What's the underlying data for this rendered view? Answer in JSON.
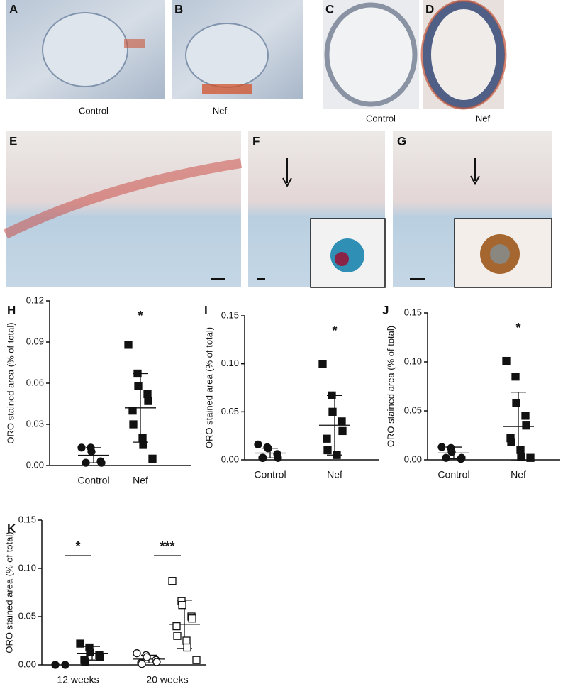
{
  "images": [
    {
      "label": "A",
      "caption": "Control"
    },
    {
      "label": "B",
      "caption": "Nef"
    },
    {
      "label": "C",
      "caption": "Control"
    },
    {
      "label": "D",
      "caption": "Nef"
    },
    {
      "label": "E"
    },
    {
      "label": "F"
    },
    {
      "label": "G"
    }
  ],
  "chart_data": [
    {
      "type": "scatter",
      "panel": "H",
      "ylabel": "ORO stained area (% of total)",
      "categories": [
        "Control",
        "Nef"
      ],
      "annotations": [
        "*"
      ],
      "ylim": [
        0,
        0.12
      ],
      "yticks": [
        {
          "value": 0,
          "label": "0.00"
        },
        {
          "value": 0.03,
          "label": "0.03"
        },
        {
          "value": 0.06,
          "label": "0.06"
        },
        {
          "value": 0.09,
          "label": "0.09"
        },
        {
          "value": 0.12,
          "label": "0.12"
        }
      ],
      "series": [
        {
          "marker": "circle",
          "filled": true,
          "color": "#111111",
          "values": [
            0.013,
            0.013,
            0.01,
            0.003,
            0.002,
            0.002
          ],
          "mean": 0.0075,
          "sd": 0.0055
        },
        {
          "marker": "square",
          "filled": true,
          "color": "#111111",
          "values": [
            0.088,
            0.067,
            0.058,
            0.052,
            0.047,
            0.04,
            0.03,
            0.02,
            0.015,
            0.005
          ],
          "mean": 0.042,
          "sd": 0.025
        }
      ]
    },
    {
      "type": "scatter",
      "panel": "I",
      "ylabel": "ORO stained area (% of total)",
      "categories": [
        "Control",
        "Nef"
      ],
      "annotations": [
        "*"
      ],
      "ylim": [
        0,
        0.15
      ],
      "yticks": [
        {
          "value": 0,
          "label": "0.00"
        },
        {
          "value": 0.05,
          "label": "0.05"
        },
        {
          "value": 0.1,
          "label": "0.10"
        },
        {
          "value": 0.15,
          "label": "0.15"
        }
      ],
      "series": [
        {
          "marker": "circle",
          "filled": true,
          "color": "#111111",
          "values": [
            0.016,
            0.013,
            0.012,
            0.006,
            0.002,
            0.002,
            0.002
          ],
          "mean": 0.007,
          "sd": 0.005
        },
        {
          "marker": "square",
          "filled": true,
          "color": "#111111",
          "values": [
            0.1,
            0.067,
            0.05,
            0.04,
            0.03,
            0.022,
            0.01,
            0.005
          ],
          "mean": 0.036,
          "sd": 0.031
        }
      ]
    },
    {
      "type": "scatter",
      "panel": "J",
      "ylabel": "ORO stained area (% of total)",
      "categories": [
        "Control",
        "Nef"
      ],
      "annotations": [
        "*"
      ],
      "ylim": [
        0,
        0.15
      ],
      "yticks": [
        {
          "value": 0,
          "label": "0.00"
        },
        {
          "value": 0.05,
          "label": "0.05"
        },
        {
          "value": 0.1,
          "label": "0.10"
        },
        {
          "value": 0.15,
          "label": "0.15"
        }
      ],
      "series": [
        {
          "marker": "circle",
          "filled": true,
          "color": "#111111",
          "values": [
            0.013,
            0.012,
            0.008,
            0.001,
            0.002,
            0.002
          ],
          "mean": 0.007,
          "sd": 0.006
        },
        {
          "marker": "square",
          "filled": true,
          "color": "#111111",
          "values": [
            0.101,
            0.085,
            0.058,
            0.045,
            0.035,
            0.022,
            0.018,
            0.01,
            0.003,
            0.002
          ],
          "mean": 0.034,
          "sd": 0.035
        }
      ]
    },
    {
      "type": "scatter",
      "panel": "K",
      "ylabel": "ORO stained area (% of total)",
      "categories": [
        "12 weeks",
        "20 weeks"
      ],
      "annotations": [
        "*",
        "***"
      ],
      "ylim": [
        0,
        0.15
      ],
      "yticks": [
        {
          "value": 0,
          "label": "0.00"
        },
        {
          "value": 0.05,
          "label": "0.05"
        },
        {
          "value": 0.1,
          "label": "0.10"
        },
        {
          "value": 0.15,
          "label": "0.15"
        }
      ],
      "series": [
        {
          "marker": "circle",
          "filled": true,
          "color": "#111111",
          "values": [
            0,
            0
          ]
        },
        {
          "marker": "square",
          "filled": true,
          "color": "#111111",
          "values": [
            0.022,
            0.018,
            0.013,
            0.01,
            0.008,
            0.005,
            0.003
          ],
          "mean": 0.012,
          "sd": 0.007
        },
        {
          "marker": "circle",
          "filled": false,
          "color": "#111111",
          "values": [
            0.012,
            0.01,
            0.008,
            0.005,
            0.003,
            0.002,
            0.001
          ],
          "mean": 0.006,
          "sd": 0.004
        },
        {
          "marker": "square",
          "filled": false,
          "color": "#111111",
          "values": [
            0.087,
            0.066,
            0.062,
            0.05,
            0.048,
            0.04,
            0.03,
            0.025,
            0.018,
            0.005
          ],
          "mean": 0.042,
          "sd": 0.025
        }
      ]
    }
  ]
}
